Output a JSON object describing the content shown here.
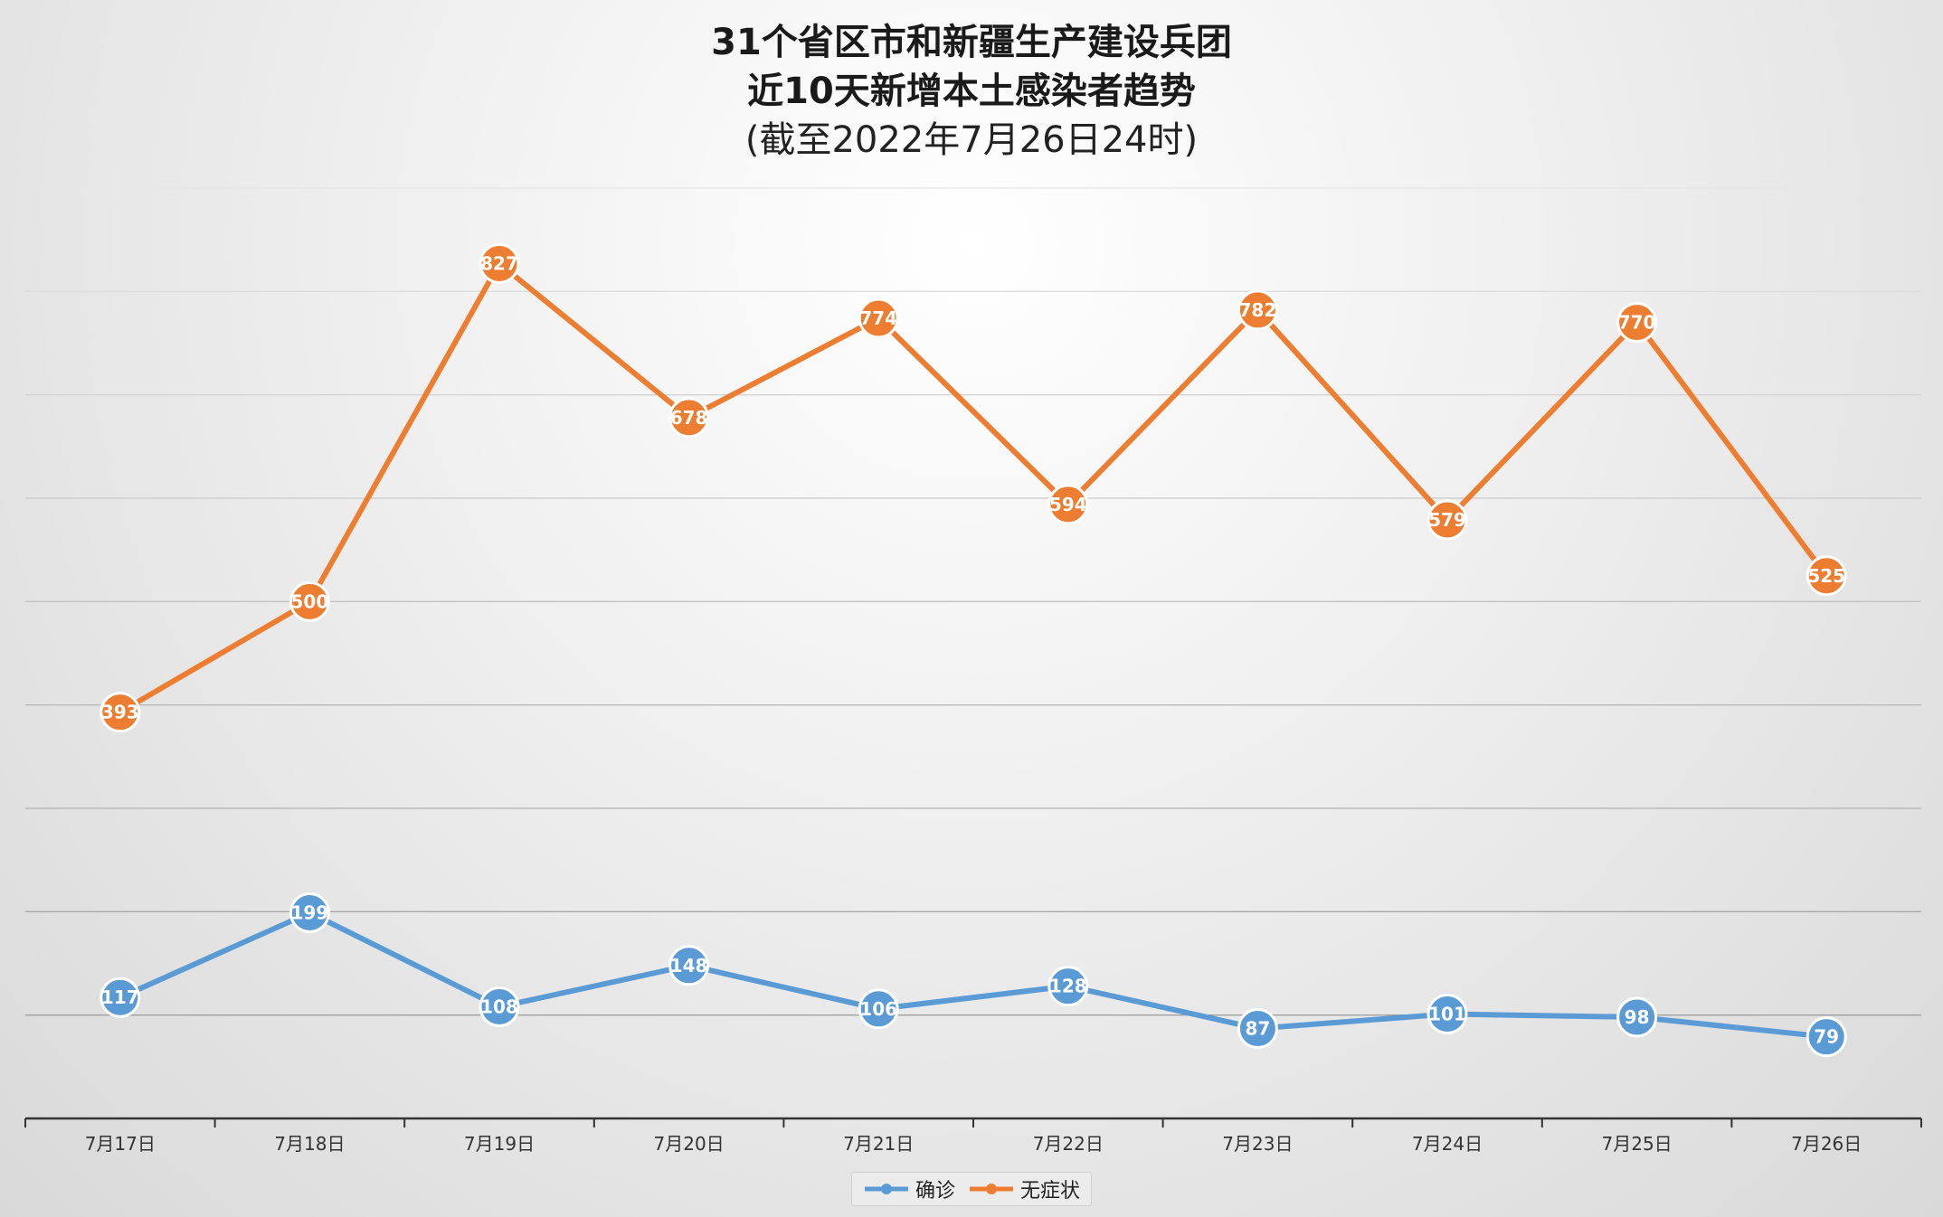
{
  "chart_data": {
    "type": "line",
    "title_lines": [
      "31个省区市和新疆生产建设兵团",
      "近10天新增本土感染者趋势"
    ],
    "subtitle": "(截至2022年7月26日24时)",
    "categories": [
      "7月17日",
      "7月18日",
      "7月19日",
      "7月20日",
      "7月21日",
      "7月22日",
      "7月23日",
      "7月24日",
      "7月25日",
      "7月26日"
    ],
    "series": [
      {
        "name": "确诊",
        "color": "#5b9bd5",
        "values": [
          117,
          199,
          108,
          148,
          106,
          128,
          87,
          101,
          98,
          79
        ]
      },
      {
        "name": "无症状",
        "color": "#ed7d31",
        "values": [
          393,
          500,
          827,
          678,
          774,
          594,
          782,
          579,
          770,
          525
        ]
      }
    ],
    "ylim": [
      0,
      900
    ],
    "grid": true,
    "y_tick_labels_shown": false,
    "legend_position": "bottom-center"
  }
}
